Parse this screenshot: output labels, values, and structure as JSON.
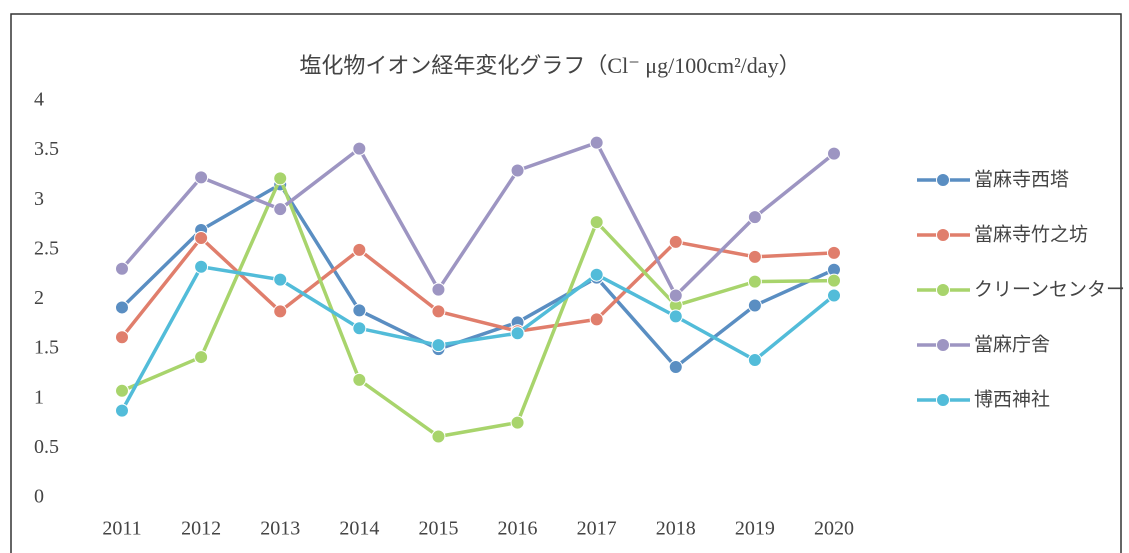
{
  "chart_data": {
    "type": "line",
    "title": "塩化物イオン経年変化グラフ（Cl⁻ μg/100cm²/day）",
    "categories": [
      "2011",
      "2012",
      "2013",
      "2014",
      "2015",
      "2016",
      "2017",
      "2018",
      "2019",
      "2020"
    ],
    "series": [
      {
        "name": "當麻寺西塔",
        "color": "#5a8ec2",
        "values": [
          1.92,
          2.7,
          3.16,
          1.89,
          1.5,
          1.77,
          2.22,
          1.32,
          1.94,
          2.3
        ]
      },
      {
        "name": "當麻寺竹之坊",
        "color": "#e07e6c",
        "values": [
          1.62,
          2.62,
          1.88,
          2.5,
          1.88,
          1.68,
          1.8,
          2.58,
          2.43,
          2.47
        ]
      },
      {
        "name": "クリーンセンター",
        "color": "#a8d46c",
        "values": [
          1.08,
          1.42,
          3.22,
          1.19,
          0.62,
          0.76,
          2.78,
          1.94,
          2.18,
          2.19
        ]
      },
      {
        "name": "當麻庁舎",
        "color": "#9d95c2",
        "values": [
          2.31,
          3.23,
          2.91,
          3.52,
          2.1,
          3.3,
          3.58,
          2.04,
          2.83,
          3.47
        ]
      },
      {
        "name": "博西神社",
        "color": "#52bcd9",
        "values": [
          0.88,
          2.33,
          2.2,
          1.71,
          1.54,
          1.66,
          2.25,
          1.83,
          1.39,
          2.04
        ]
      }
    ],
    "ylim": [
      0,
      4
    ],
    "yticks": [
      0,
      0.5,
      1,
      1.5,
      2,
      2.5,
      3,
      3.5,
      4
    ],
    "legend": "right"
  }
}
